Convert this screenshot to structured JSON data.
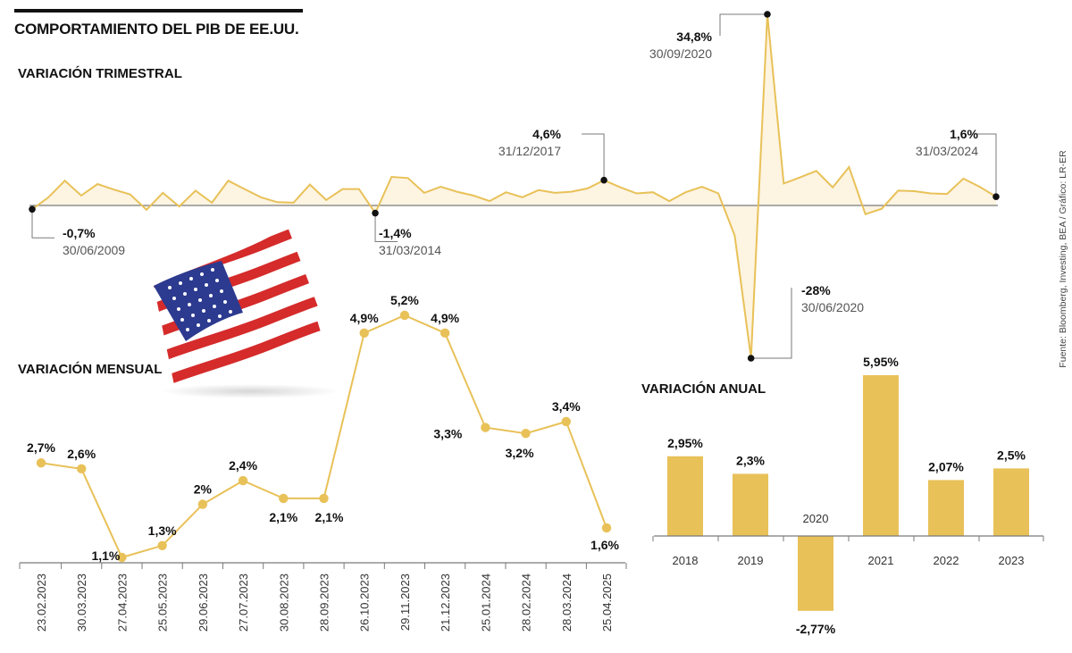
{
  "title": "COMPORTAMIENTO DEL PIB DE EE.UU.",
  "source": "Fuente: Bloomberg, Investing, BEA / Gráfico: LR-ER",
  "colors": {
    "accent": "#e8c158",
    "area": "#fdf4e2",
    "axis": "#7a7a7a",
    "text": "#111111"
  },
  "chart_data": [
    {
      "type": "area",
      "title": "VARIACIÓN TRIMESTRAL",
      "ylim": [
        -28,
        34.8
      ],
      "values": [
        -0.7,
        1.5,
        4.5,
        1.8,
        3.9,
        2.9,
        2.0,
        -0.8,
        2.3,
        -0.2,
        2.7,
        0.5,
        4.5,
        3.0,
        1.5,
        0.6,
        0.5,
        3.8,
        1.0,
        3.0,
        3.0,
        -1.4,
        5.2,
        5.0,
        2.3,
        3.4,
        2.5,
        1.8,
        0.8,
        2.4,
        1.5,
        2.8,
        2.3,
        2.5,
        3.1,
        4.6,
        3.3,
        2.2,
        2.4,
        0.8,
        2.4,
        3.4,
        2.2,
        -5.5,
        -28.0,
        34.8,
        4.0,
        5.1,
        6.3,
        3.3,
        7.0,
        -1.6,
        -0.6,
        2.7,
        2.6,
        2.2,
        2.1,
        4.9,
        3.4,
        1.6
      ],
      "annotations": [
        {
          "value": "-0,7%",
          "date": "30/06/2009"
        },
        {
          "value": "-1,4%",
          "date": "31/03/2014"
        },
        {
          "value": "4,6%",
          "date": "31/12/2017"
        },
        {
          "value": "34,8%",
          "date": "30/09/2020"
        },
        {
          "value": "-28%",
          "date": "30/06/2020"
        },
        {
          "value": "1,6%",
          "date": "31/03/2024"
        }
      ]
    },
    {
      "type": "line",
      "title": "VARIACIÓN MENSUAL",
      "categories": [
        "23.02.2023",
        "30.03.2023",
        "27.04.2023",
        "25.05.2023",
        "29.06.2023",
        "27.07.2023",
        "30.08.2023",
        "28.09.2023",
        "26.10.2023",
        "29.11.2023",
        "21.12.2023",
        "25.01.2024",
        "28.02.2024",
        "28.03.2024",
        "25.04.2025"
      ],
      "values": [
        2.7,
        2.6,
        1.1,
        1.3,
        2.0,
        2.4,
        2.1,
        2.1,
        4.9,
        5.2,
        4.9,
        3.3,
        3.2,
        3.4,
        1.6
      ],
      "labels": [
        "2,7%",
        "2,6%",
        "1,1%",
        "1,3%",
        "2%",
        "2,4%",
        "2,1%",
        "2,1%",
        "4,9%",
        "5,2%",
        "4,9%",
        "3,3%",
        "3,2%",
        "3,4%",
        "1,6%"
      ]
    },
    {
      "type": "bar",
      "title": "VARIACIÓN ANUAL",
      "categories": [
        "2018",
        "2019",
        "2020",
        "2021",
        "2022",
        "2023"
      ],
      "values": [
        2.95,
        2.3,
        -2.77,
        5.95,
        2.07,
        2.5
      ],
      "labels": [
        "2,95%",
        "2,3%",
        "-2,77%",
        "5,95%",
        "2,07%",
        "2,5%"
      ]
    }
  ]
}
